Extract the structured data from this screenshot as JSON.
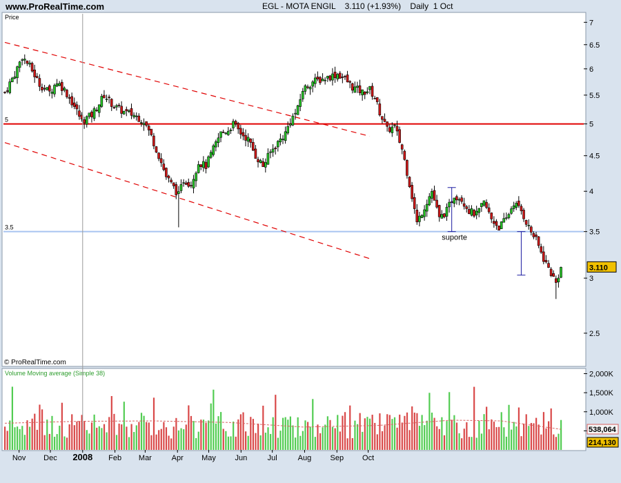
{
  "header": {
    "site": "www.ProRealTime.com",
    "title": "EGL - MOTA ENGIL    3.110 (+1.93%)    Daily  1 Oct"
  },
  "colors": {
    "up": "#27c427",
    "down": "#d01818",
    "upVol": "#52cc52",
    "downVol": "#d94848",
    "resistance": "#e00000",
    "support": "#a8c4f0",
    "channel": "#e00000",
    "marker": "#1a1aa0",
    "volMA": "#d86060",
    "priceTag": "#f0c000"
  },
  "chart_data": [
    {
      "type": "candlestick",
      "title": "EGL - MOTA ENGIL",
      "panel_label": "Price",
      "last_price": "3.110",
      "change": "+1.93%",
      "period": "Daily",
      "date": "1 Oct",
      "ylim": [
        2.25,
        7.2
      ],
      "log_scale": true,
      "y_ticks": [
        2.5,
        3,
        3.5,
        4,
        4.5,
        5,
        5.5,
        6,
        6.5,
        7
      ],
      "x_months": [
        "Nov",
        "Dec",
        "2008",
        "Feb",
        "Mar",
        "Apr",
        "May",
        "Jun",
        "Jul",
        "Aug",
        "Sep",
        "Oct"
      ],
      "x_month_day_offsets": [
        15,
        45,
        76,
        107,
        136,
        167,
        197,
        228,
        258,
        289,
        320,
        350
      ],
      "last_day_offset": 350,
      "close_series": [
        [
          0,
          5.55
        ],
        [
          4,
          5.9
        ],
        [
          7,
          6.25
        ],
        [
          10,
          6.05
        ],
        [
          14,
          5.7
        ],
        [
          18,
          5.55
        ],
        [
          21,
          5.75
        ],
        [
          24,
          5.6
        ],
        [
          28,
          5.3
        ],
        [
          31,
          5.05
        ],
        [
          35,
          5.15
        ],
        [
          38,
          5.35
        ],
        [
          40,
          5.5
        ],
        [
          44,
          5.3
        ],
        [
          48,
          5.2
        ],
        [
          52,
          5.15
        ],
        [
          56,
          5.05
        ],
        [
          59,
          4.8
        ],
        [
          62,
          4.5
        ],
        [
          65,
          4.2
        ],
        [
          68,
          4.05
        ],
        [
          70,
          3.95
        ],
        [
          72,
          4.15
        ],
        [
          75,
          4.1
        ],
        [
          78,
          4.4
        ],
        [
          81,
          4.35
        ],
        [
          84,
          4.6
        ],
        [
          87,
          4.85
        ],
        [
          90,
          4.9
        ],
        [
          92,
          5.0
        ],
        [
          95,
          4.85
        ],
        [
          98,
          4.75
        ],
        [
          101,
          4.5
        ],
        [
          104,
          4.35
        ],
        [
          107,
          4.55
        ],
        [
          110,
          4.7
        ],
        [
          113,
          4.85
        ],
        [
          115,
          5.05
        ],
        [
          118,
          5.25
        ],
        [
          120,
          5.6
        ],
        [
          124,
          5.75
        ],
        [
          128,
          5.8
        ],
        [
          131,
          5.85
        ],
        [
          134,
          5.9
        ],
        [
          137,
          5.8
        ],
        [
          140,
          5.65
        ],
        [
          144,
          5.55
        ],
        [
          147,
          5.6
        ],
        [
          149,
          5.45
        ],
        [
          151,
          5.2
        ],
        [
          154,
          4.9
        ],
        [
          157,
          4.95
        ],
        [
          160,
          4.6
        ],
        [
          163,
          4.1
        ],
        [
          166,
          3.6
        ],
        [
          169,
          3.8
        ],
        [
          172,
          4.0
        ],
        [
          175,
          3.65
        ],
        [
          178,
          3.75
        ],
        [
          181,
          3.95
        ],
        [
          184,
          3.9
        ],
        [
          187,
          3.75
        ],
        [
          190,
          3.7
        ],
        [
          193,
          3.85
        ],
        [
          196,
          3.65
        ],
        [
          199,
          3.55
        ],
        [
          202,
          3.65
        ],
        [
          205,
          3.85
        ],
        [
          208,
          3.75
        ],
        [
          211,
          3.55
        ],
        [
          214,
          3.4
        ],
        [
          217,
          3.2
        ],
        [
          220,
          3.05
        ],
        [
          222,
          2.95
        ],
        [
          224,
          3.11
        ]
      ],
      "horizontal_lines": [
        {
          "name": "resistance",
          "value": 5,
          "label": "5"
        },
        {
          "name": "support",
          "value": 3.5,
          "label": "3.5",
          "annotation": "suporte"
        }
      ],
      "trend_channel": [
        {
          "from": [
            0,
            6.55
          ],
          "to": [
            147,
            4.8
          ]
        },
        {
          "from": [
            0,
            4.7
          ],
          "to": [
            147,
            3.2
          ]
        }
      ],
      "measure_marks": [
        {
          "day": 180,
          "from": 4.05,
          "to": 3.5
        },
        {
          "day": 208,
          "from": 3.5,
          "to": 3.03
        }
      ],
      "annotations": [
        "suporte"
      ]
    },
    {
      "type": "bar",
      "title": "Volume  Moving average (Simple 38)",
      "y_ticks": [
        "2,000K",
        "1,500K",
        "1,000K",
        "500K"
      ],
      "y_tick_values": [
        2000,
        1500,
        1000,
        500
      ],
      "ylim": [
        0,
        2100
      ],
      "ma_last": "538,064",
      "volume_last": "214,130",
      "volume_ma_level_k": [
        [
          0,
          700
        ],
        [
          30,
          750
        ],
        [
          60,
          760
        ],
        [
          90,
          720
        ],
        [
          120,
          600
        ],
        [
          150,
          640
        ],
        [
          180,
          780
        ],
        [
          200,
          760
        ],
        [
          224,
          540
        ]
      ]
    }
  ],
  "footer": {
    "copyright": "© ProRealTime.com"
  }
}
